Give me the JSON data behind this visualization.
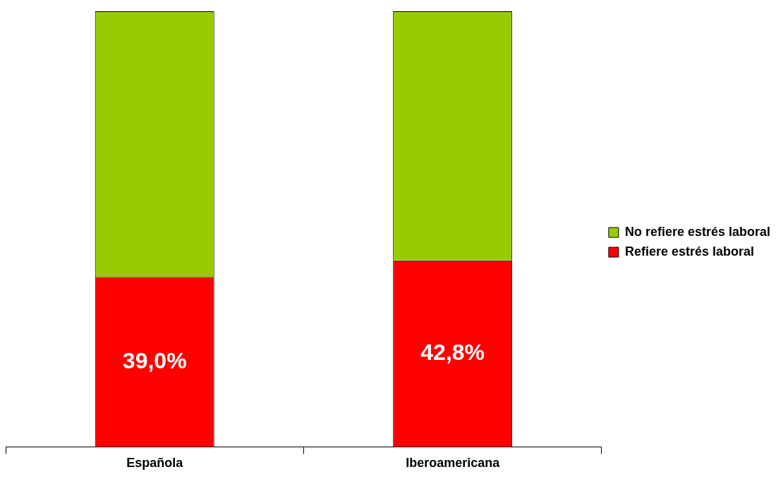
{
  "chart_data": {
    "type": "bar",
    "categories": [
      "Española",
      "Iberoamericana"
    ],
    "stacked": true,
    "ylim": [
      0,
      100
    ],
    "tick_labels": "x",
    "legend": "right",
    "series": [
      {
        "name": "Refiere estrés laboral",
        "color": "#ff0000",
        "values": [
          39.0,
          42.8
        ],
        "value_labels": [
          "39,0%",
          "42,8%"
        ]
      },
      {
        "name": "No refiere estrés laboral",
        "color": "#99cc00",
        "values": [
          61.0,
          57.2
        ]
      }
    ]
  }
}
